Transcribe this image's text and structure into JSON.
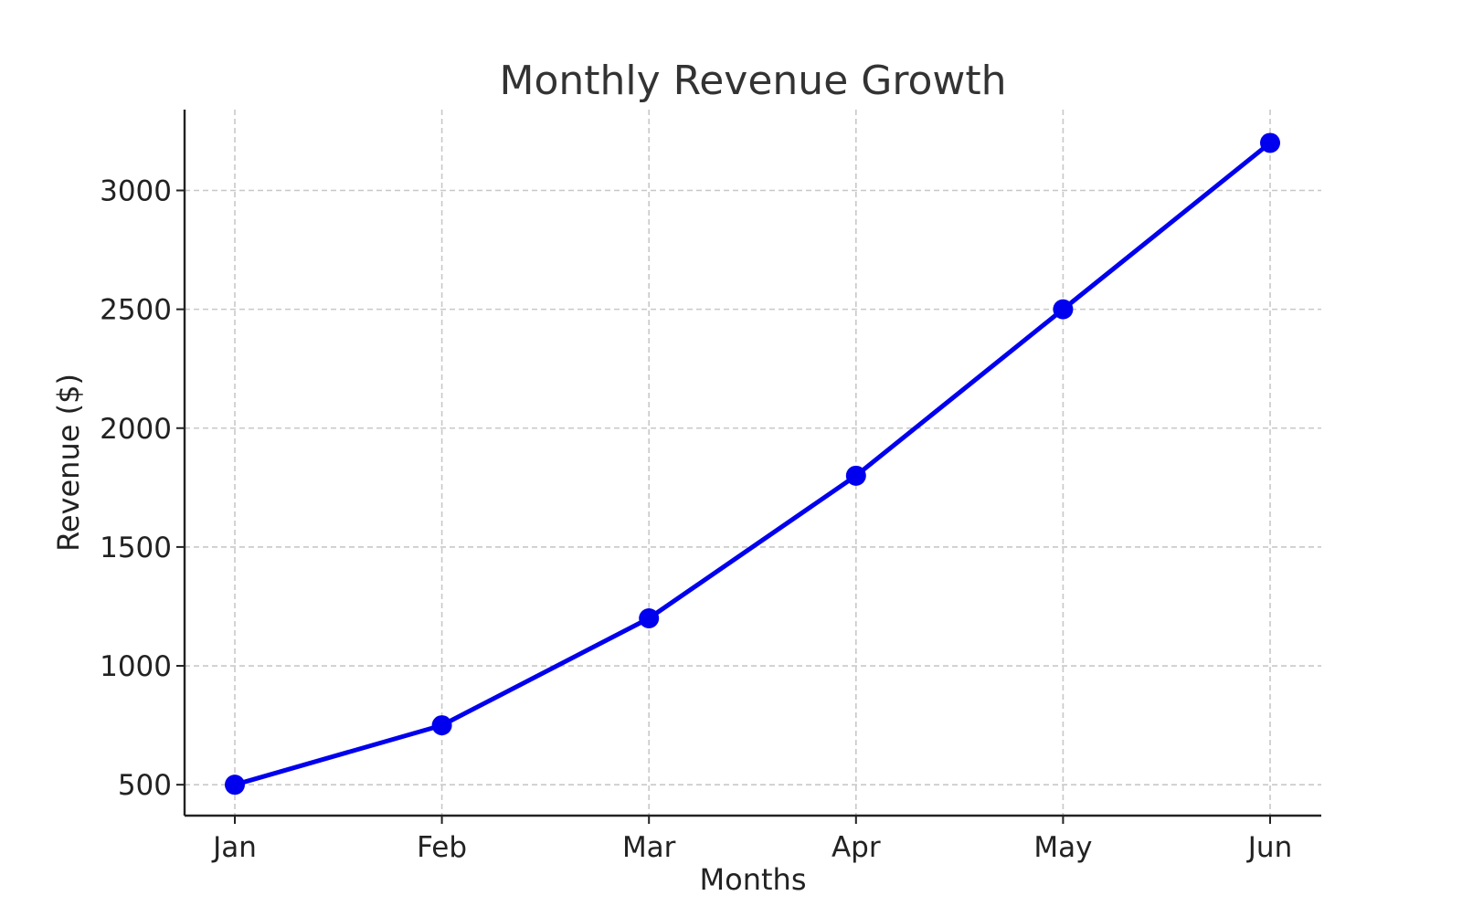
{
  "chart_data": {
    "type": "line",
    "title": "Monthly Revenue Growth",
    "xlabel": "Months",
    "ylabel": "Revenue ($)",
    "categories": [
      "Jan",
      "Feb",
      "Mar",
      "Apr",
      "May",
      "Jun"
    ],
    "series": [
      {
        "values": [
          500,
          750,
          1200,
          1800,
          2500,
          3200
        ],
        "color": "#0000ee",
        "marker": "circle"
      }
    ],
    "yticks": [
      500,
      1000,
      1500,
      2000,
      2500,
      3000
    ],
    "ylim": [
      370,
      3340
    ],
    "grid": true,
    "grid_style": "dashed",
    "legend": "none"
  }
}
